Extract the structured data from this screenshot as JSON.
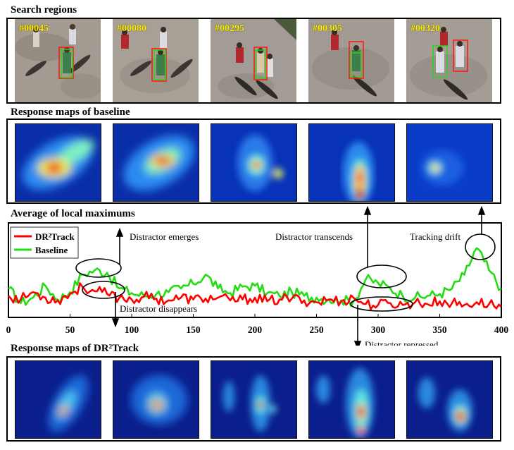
{
  "sections": {
    "search": "Search regions",
    "baseline_maps": "Response maps of baseline",
    "average": "Average of local maximums",
    "dr2_maps": "Response maps of DR²Track"
  },
  "frames": [
    "#00045",
    "#00080",
    "#00295",
    "#00305",
    "#00320"
  ],
  "annotations": {
    "emerges": "Distractor emerges",
    "disappears": "Distractor disappears",
    "transcends": "Distractor transcends",
    "repressed": "Distractor repressed",
    "drift": "Tracking drift"
  },
  "colors": {
    "dr2": "#ff0000",
    "baseline": "#22dd11"
  },
  "chart_data": {
    "type": "line",
    "title": "Average of local maximums",
    "xlabel": "",
    "ylabel": "",
    "xlim": [
      0,
      400
    ],
    "ylim": [
      0,
      1
    ],
    "xticks": [
      0,
      50,
      100,
      150,
      200,
      250,
      300,
      350,
      400
    ],
    "legend": "top-left",
    "series": [
      {
        "name": "DR²Track",
        "x": [
          0,
          10,
          20,
          30,
          40,
          50,
          60,
          70,
          80,
          90,
          100,
          110,
          120,
          130,
          140,
          150,
          160,
          170,
          180,
          190,
          200,
          210,
          220,
          230,
          240,
          250,
          260,
          270,
          280,
          290,
          300,
          310,
          320,
          330,
          340,
          350,
          360,
          370,
          380,
          390,
          400
        ],
        "values": [
          0.22,
          0.18,
          0.26,
          0.2,
          0.17,
          0.24,
          0.32,
          0.27,
          0.24,
          0.2,
          0.18,
          0.21,
          0.19,
          0.17,
          0.2,
          0.18,
          0.19,
          0.2,
          0.17,
          0.18,
          0.2,
          0.16,
          0.18,
          0.19,
          0.17,
          0.15,
          0.18,
          0.16,
          0.2,
          0.13,
          0.12,
          0.14,
          0.12,
          0.15,
          0.13,
          0.16,
          0.14,
          0.12,
          0.15,
          0.13,
          0.1
        ]
      },
      {
        "name": "Baseline",
        "x": [
          0,
          10,
          20,
          30,
          40,
          50,
          60,
          70,
          80,
          90,
          100,
          110,
          120,
          130,
          140,
          150,
          160,
          170,
          180,
          190,
          200,
          210,
          220,
          230,
          240,
          250,
          260,
          270,
          280,
          290,
          300,
          310,
          320,
          330,
          340,
          350,
          360,
          370,
          380,
          390,
          400
        ],
        "values": [
          0.3,
          0.14,
          0.2,
          0.33,
          0.18,
          0.26,
          0.45,
          0.5,
          0.47,
          0.3,
          0.25,
          0.22,
          0.24,
          0.26,
          0.3,
          0.35,
          0.45,
          0.3,
          0.25,
          0.32,
          0.33,
          0.25,
          0.22,
          0.26,
          0.22,
          0.2,
          0.18,
          0.17,
          0.16,
          0.4,
          0.36,
          0.3,
          0.22,
          0.2,
          0.22,
          0.24,
          0.3,
          0.45,
          0.74,
          0.5,
          0.3
        ]
      }
    ]
  }
}
